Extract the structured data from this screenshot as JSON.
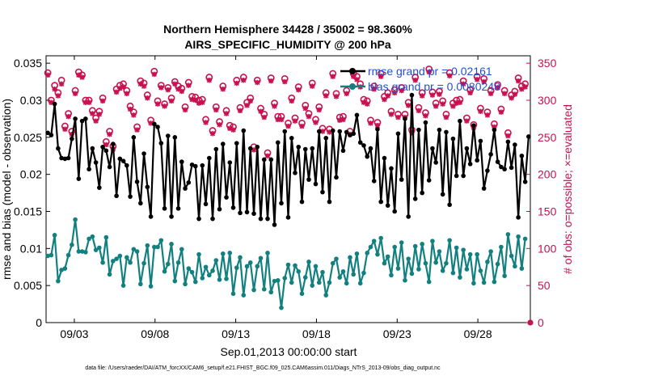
{
  "chart_data": {
    "type": "line",
    "title_line1": "Northern Hemisphere 34428 / 35002 = 98.360%",
    "title_line2": "AIRS_SPECIFIC_HUMIDITY @ 200 hPa",
    "xlabel": "Sep.01,2013 00:00:00 start",
    "ylabel_left": "rmse and bias (model - observation)",
    "ylabel_right": "# of obs: o=possible; ×=evaluated",
    "footer": "data file: /Users/raeder/DAI/ATM_forcXX/CAM6_setup/f.e21.FHIST_BGC.f09_025.CAM6assim.011/Diags_NTrS_2013-09/obs_diag_output.nc",
    "x_ticks": [
      "09/03",
      "09/08",
      "09/13",
      "09/18",
      "09/23",
      "09/28"
    ],
    "x_tick_days": [
      3,
      8,
      13,
      18,
      23,
      28
    ],
    "x_range": [
      1.25,
      31.25
    ],
    "y_left_range": [
      0,
      0.036
    ],
    "y_left_ticks": [
      "0",
      "0.005",
      "0.01",
      "0.015",
      "0.02",
      "0.025",
      "0.03",
      "0.035"
    ],
    "y_left_tick_values": [
      0,
      0.005,
      0.01,
      0.015,
      0.02,
      0.025,
      0.03,
      0.035
    ],
    "y_right_range": [
      0,
      360
    ],
    "y_right_ticks": [
      "0",
      "50",
      "100",
      "150",
      "200",
      "250",
      "300",
      "350"
    ],
    "y_right_tick_values": [
      0,
      50,
      100,
      150,
      200,
      250,
      300,
      350
    ],
    "legend": {
      "rmse_label": "rmse grand pr = 0.02161",
      "bias_label": "bias grand pr = 0.0080248",
      "placement": "top-right"
    },
    "colors": {
      "rmse": "#000000",
      "bias": "#138080",
      "obs": "#c8114f",
      "legend_text": "#1f4fd6"
    },
    "series": [
      {
        "name": "rmse",
        "values": [
          0.0256,
          0.0253,
          0.0295,
          0.0235,
          0.0222,
          0.0221,
          0.0222,
          0.0248,
          0.0275,
          0.0194,
          0.0272,
          0.0275,
          0.0207,
          0.0235,
          0.0216,
          0.0182,
          0.0237,
          0.0232,
          0.021,
          0.0241,
          0.0171,
          0.0221,
          0.0218,
          0.0212,
          0.017,
          0.025,
          0.019,
          0.0161,
          0.0228,
          0.0183,
          0.0143,
          0.0268,
          0.0264,
          0.0242,
          0.0154,
          0.0252,
          0.0143,
          0.025,
          0.0154,
          0.0217,
          0.0181,
          0.0189,
          0.0213,
          0.0211,
          0.014,
          0.0212,
          0.016,
          0.0222,
          0.014,
          0.0234,
          0.0153,
          0.0241,
          0.0169,
          0.0216,
          0.0155,
          0.0242,
          0.0148,
          0.0259,
          0.0149,
          0.0235,
          0.0147,
          0.0237,
          0.014,
          0.022,
          0.014,
          0.022,
          0.0132,
          0.0243,
          0.0161,
          0.0258,
          0.0142,
          0.0249,
          0.0202,
          0.0237,
          0.0163,
          0.0234,
          0.0193,
          0.0235,
          0.0187,
          0.0258,
          0.0176,
          0.0249,
          0.0163,
          0.0259,
          0.0196,
          0.0258,
          0.0232,
          0.0257,
          0.0253,
          0.0255,
          0.028,
          0.0243,
          0.0239,
          0.0224,
          0.0235,
          0.0191,
          0.0261,
          0.0163,
          0.0222,
          0.0158,
          0.0208,
          0.015,
          0.0255,
          0.0193,
          0.0275,
          0.0143,
          0.0307,
          0.0167,
          0.026,
          0.0175,
          0.027,
          0.0192,
          0.0235,
          0.0216,
          0.026,
          0.0173,
          0.0257,
          0.0159,
          0.0248,
          0.0198,
          0.0272,
          0.0198,
          0.0235,
          0.0214,
          0.0266,
          0.0219,
          0.0245,
          0.0181,
          0.0205,
          0.0227,
          0.026,
          0.0217,
          0.021,
          0.0207,
          0.0244,
          0.0209,
          0.024,
          0.0142,
          0.0225,
          0.019,
          0.0251
        ]
      },
      {
        "name": "bias",
        "values": [
          0.009,
          0.0091,
          0.0118,
          0.0056,
          0.0071,
          0.0073,
          0.0091,
          0.0105,
          0.0139,
          0.0096,
          0.0096,
          0.0095,
          0.0113,
          0.0116,
          0.0098,
          0.0101,
          0.0081,
          0.0115,
          0.0065,
          0.0083,
          0.0086,
          0.009,
          0.005,
          0.0088,
          0.0081,
          0.0099,
          0.0096,
          0.0052,
          0.008,
          0.0104,
          0.0049,
          0.0102,
          0.0102,
          0.0111,
          0.0069,
          0.0079,
          0.0106,
          0.0056,
          0.0081,
          0.0099,
          0.0052,
          0.0073,
          0.0068,
          0.0055,
          0.0092,
          0.006,
          0.0075,
          0.0064,
          0.007,
          0.0084,
          0.0058,
          0.0093,
          0.0059,
          0.0094,
          0.0039,
          0.0074,
          0.0088,
          0.0037,
          0.0076,
          0.0081,
          0.0044,
          0.0076,
          0.0087,
          0.0045,
          0.0094,
          0.0041,
          0.0056,
          0.0057,
          0.002,
          0.006,
          0.0078,
          0.0054,
          0.0077,
          0.0069,
          0.0039,
          0.0061,
          0.0082,
          0.005,
          0.0076,
          0.0054,
          0.0068,
          0.0037,
          0.0054,
          0.008,
          0.0086,
          0.0061,
          0.0069,
          0.0053,
          0.0088,
          0.0065,
          0.0093,
          0.0053,
          0.0067,
          0.0094,
          0.0102,
          0.011,
          0.0092,
          0.0114,
          0.008,
          0.0089,
          0.0064,
          0.0102,
          0.0073,
          0.0108,
          0.0057,
          0.0086,
          0.0066,
          0.0103,
          0.0072,
          0.0106,
          0.008,
          0.0055,
          0.011,
          0.0081,
          0.0096,
          0.007,
          0.008,
          0.0111,
          0.0067,
          0.0101,
          0.0061,
          0.0098,
          0.0072,
          0.0092,
          0.0053,
          0.0092,
          0.007,
          0.0054,
          0.0082,
          0.0096,
          0.0055,
          0.0079,
          0.0102,
          0.0063,
          0.0119,
          0.009,
          0.0076,
          0.0116,
          0.0073,
          0.0113
        ]
      },
      {
        "name": "obs_possible",
        "values": [
          337,
          300,
          320,
          310,
          327,
          265,
          282,
          258,
          313,
          338,
          334,
          300,
          300,
          286,
          276,
          285,
          303,
          244,
          258,
          238,
          315,
          320,
          322,
          313,
          292,
          284,
          264,
          326,
          323,
          307,
          273,
          339,
          299,
          320,
          295,
          317,
          303,
          325,
          319,
          316,
          291,
          324,
          305,
          304,
          300,
          301,
          274,
          331,
          259,
          291,
          271,
          319,
          286,
          266,
          264,
          327,
          290,
          331,
          297,
          303,
          237,
          327,
          289,
          281,
          229,
          330,
          296,
          278,
          278,
          329,
          269,
          303,
          276,
          318,
          269,
          293,
          282,
          323,
          274,
          291,
          262,
          310,
          261,
          336,
          309,
          277,
          278,
          313,
          258,
          336,
          332,
          322,
          301,
          299,
          273,
          319,
          270,
          336,
          305,
          310,
          285,
          314,
          281,
          317,
          281,
          297,
          260,
          331,
          290,
          310,
          283,
          342,
          311,
          296,
          312,
          299,
          281,
          337,
          296,
          300,
          301,
          326,
          276,
          314,
          267,
          332,
          289,
          329,
          284,
          313,
          268,
          321,
          288,
          313,
          256,
          307,
          312,
          330,
          319,
          322
        ]
      },
      {
        "name": "obs_evaluated",
        "values": [
          334,
          297,
          315,
          306,
          322,
          261,
          278,
          254,
          309,
          334,
          331,
          297,
          297,
          282,
          272,
          281,
          299,
          240,
          254,
          234,
          311,
          316,
          318,
          309,
          288,
          280,
          260,
          322,
          319,
          303,
          269,
          335,
          295,
          317,
          292,
          314,
          299,
          322,
          315,
          312,
          287,
          320,
          301,
          300,
          296,
          297,
          270,
          327,
          255,
          287,
          267,
          315,
          282,
          262,
          260,
          323,
          286,
          327,
          293,
          299,
          233,
          324,
          285,
          277,
          225,
          326,
          292,
          274,
          274,
          325,
          265,
          299,
          272,
          314,
          265,
          289,
          278,
          319,
          270,
          287,
          258,
          306,
          257,
          332,
          305,
          273,
          274,
          309,
          254,
          332,
          328,
          318,
          297,
          295,
          269,
          315,
          266,
          332,
          301,
          306,
          281,
          310,
          277,
          313,
          277,
          293,
          256,
          327,
          286,
          306,
          279,
          338,
          307,
          292,
          308,
          295,
          277,
          333,
          292,
          296,
          297,
          322,
          272,
          310,
          263,
          328,
          285,
          325,
          280,
          309,
          264,
          317,
          284,
          309,
          252,
          303,
          308,
          326,
          315,
          318
        ]
      }
    ],
    "final_obs_value": 0
  }
}
